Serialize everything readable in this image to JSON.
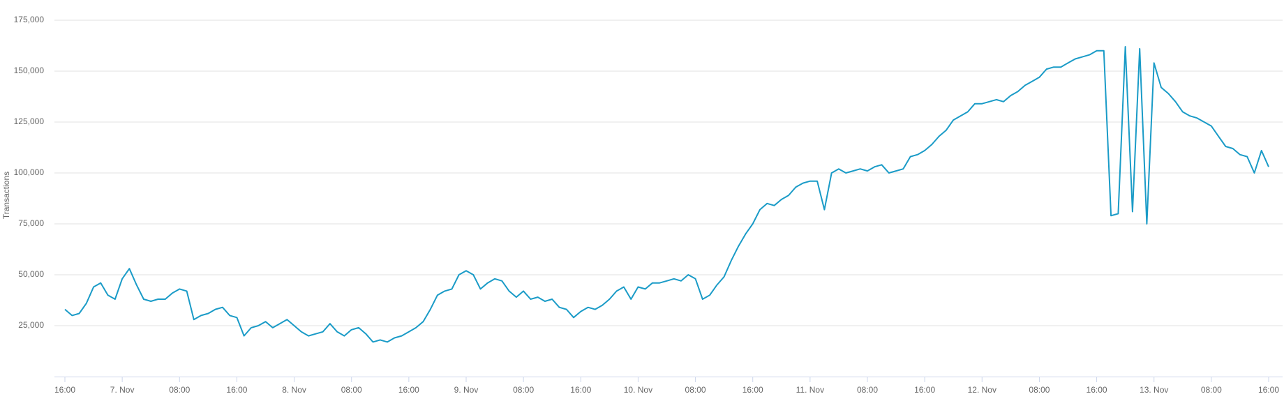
{
  "chart_data": {
    "type": "line",
    "y_label": "Transactions",
    "grid": true,
    "x": [
      "6. Nov 16:00",
      "6. Nov 17:00",
      "6. Nov 18:00",
      "6. Nov 19:00",
      "6. Nov 20:00",
      "6. Nov 21:00",
      "6. Nov 22:00",
      "6. Nov 23:00",
      "7. Nov 00:00",
      "7. Nov 01:00",
      "7. Nov 02:00",
      "7. Nov 03:00",
      "7. Nov 04:00",
      "7. Nov 05:00",
      "7. Nov 06:00",
      "7. Nov 07:00",
      "7. Nov 08:00",
      "7. Nov 09:00",
      "7. Nov 10:00",
      "7. Nov 11:00",
      "7. Nov 12:00",
      "7. Nov 13:00",
      "7. Nov 14:00",
      "7. Nov 15:00",
      "7. Nov 16:00",
      "7. Nov 17:00",
      "7. Nov 18:00",
      "7. Nov 19:00",
      "7. Nov 20:00",
      "7. Nov 21:00",
      "7. Nov 22:00",
      "7. Nov 23:00",
      "8. Nov 00:00",
      "8. Nov 01:00",
      "8. Nov 02:00",
      "8. Nov 03:00",
      "8. Nov 04:00",
      "8. Nov 05:00",
      "8. Nov 06:00",
      "8. Nov 07:00",
      "8. Nov 08:00",
      "8. Nov 09:00",
      "8. Nov 10:00",
      "8. Nov 11:00",
      "8. Nov 12:00",
      "8. Nov 13:00",
      "8. Nov 14:00",
      "8. Nov 15:00",
      "8. Nov 16:00",
      "8. Nov 17:00",
      "8. Nov 18:00",
      "8. Nov 19:00",
      "8. Nov 20:00",
      "8. Nov 21:00",
      "8. Nov 22:00",
      "8. Nov 23:00",
      "9. Nov 00:00",
      "9. Nov 01:00",
      "9. Nov 02:00",
      "9. Nov 03:00",
      "9. Nov 04:00",
      "9. Nov 05:00",
      "9. Nov 06:00",
      "9. Nov 07:00",
      "9. Nov 08:00",
      "9. Nov 09:00",
      "9. Nov 10:00",
      "9. Nov 11:00",
      "9. Nov 12:00",
      "9. Nov 13:00",
      "9. Nov 14:00",
      "9. Nov 15:00",
      "9. Nov 16:00",
      "9. Nov 17:00",
      "9. Nov 18:00",
      "9. Nov 19:00",
      "9. Nov 20:00",
      "9. Nov 21:00",
      "9. Nov 22:00",
      "9. Nov 23:00",
      "10. Nov 00:00",
      "10. Nov 01:00",
      "10. Nov 02:00",
      "10. Nov 03:00",
      "10. Nov 04:00",
      "10. Nov 05:00",
      "10. Nov 06:00",
      "10. Nov 07:00",
      "10. Nov 08:00",
      "10. Nov 09:00",
      "10. Nov 10:00",
      "10. Nov 11:00",
      "10. Nov 12:00",
      "10. Nov 13:00",
      "10. Nov 14:00",
      "10. Nov 15:00",
      "10. Nov 16:00",
      "10. Nov 17:00",
      "10. Nov 18:00",
      "10. Nov 19:00",
      "10. Nov 20:00",
      "10. Nov 21:00",
      "10. Nov 22:00",
      "10. Nov 23:00",
      "11. Nov 00:00",
      "11. Nov 01:00",
      "11. Nov 02:00",
      "11. Nov 03:00",
      "11. Nov 04:00",
      "11. Nov 05:00",
      "11. Nov 06:00",
      "11. Nov 07:00",
      "11. Nov 08:00",
      "11. Nov 09:00",
      "11. Nov 10:00",
      "11. Nov 11:00",
      "11. Nov 12:00",
      "11. Nov 13:00",
      "11. Nov 14:00",
      "11. Nov 15:00",
      "11. Nov 16:00",
      "11. Nov 17:00",
      "11. Nov 18:00",
      "11. Nov 19:00",
      "11. Nov 20:00",
      "11. Nov 21:00",
      "11. Nov 22:00",
      "11. Nov 23:00",
      "12. Nov 00:00",
      "12. Nov 01:00",
      "12. Nov 02:00",
      "12. Nov 03:00",
      "12. Nov 04:00",
      "12. Nov 05:00",
      "12. Nov 06:00",
      "12. Nov 07:00",
      "12. Nov 08:00",
      "12. Nov 09:00",
      "12. Nov 10:00",
      "12. Nov 11:00",
      "12. Nov 12:00",
      "12. Nov 13:00",
      "12. Nov 14:00",
      "12. Nov 15:00",
      "12. Nov 16:00",
      "12. Nov 17:00",
      "12. Nov 18:00",
      "12. Nov 19:00",
      "12. Nov 20:00",
      "12. Nov 21:00",
      "12. Nov 22:00",
      "12. Nov 23:00",
      "13. Nov 00:00",
      "13. Nov 01:00",
      "13. Nov 02:00",
      "13. Nov 03:00",
      "13. Nov 04:00",
      "13. Nov 05:00",
      "13. Nov 06:00",
      "13. Nov 07:00",
      "13. Nov 08:00",
      "13. Nov 09:00",
      "13. Nov 10:00",
      "13. Nov 11:00",
      "13. Nov 12:00",
      "13. Nov 13:00",
      "13. Nov 14:00",
      "13. Nov 15:00",
      "13. Nov 16:00"
    ],
    "series": [
      {
        "name": "Transactions",
        "color": "#1a9bc7",
        "values": [
          33000,
          30000,
          31000,
          36000,
          44000,
          46000,
          40000,
          38000,
          48000,
          53000,
          45000,
          38000,
          37000,
          38000,
          38000,
          41000,
          43000,
          42000,
          28000,
          30000,
          31000,
          33000,
          34000,
          30000,
          29000,
          20000,
          24000,
          25000,
          27000,
          24000,
          26000,
          28000,
          25000,
          22000,
          20000,
          21000,
          22000,
          26000,
          22000,
          20000,
          23000,
          24000,
          21000,
          17000,
          18000,
          17000,
          19000,
          20000,
          22000,
          24000,
          27000,
          33000,
          40000,
          42000,
          43000,
          50000,
          52000,
          50000,
          43000,
          46000,
          48000,
          47000,
          42000,
          39000,
          42000,
          38000,
          39000,
          37000,
          38000,
          34000,
          33000,
          29000,
          32000,
          34000,
          33000,
          35000,
          38000,
          42000,
          44000,
          38000,
          44000,
          43000,
          46000,
          46000,
          47000,
          48000,
          47000,
          50000,
          48000,
          38000,
          40000,
          45000,
          49000,
          57000,
          64000,
          70000,
          75000,
          82000,
          85000,
          84000,
          87000,
          89000,
          93000,
          95000,
          96000,
          96000,
          82000,
          100000,
          102000,
          100000,
          101000,
          102000,
          101000,
          103000,
          104000,
          100000,
          101000,
          102000,
          108000,
          109000,
          111000,
          114000,
          118000,
          121000,
          126000,
          128000,
          130000,
          134000,
          134000,
          135000,
          136000,
          135000,
          138000,
          140000,
          143000,
          145000,
          147000,
          151000,
          152000,
          152000,
          154000,
          156000,
          157000,
          158000,
          160000,
          160000,
          79000,
          80000,
          162000,
          81000,
          161000,
          75000,
          154000,
          142000,
          139000,
          135000,
          130000,
          128000,
          127000,
          125000,
          123000,
          118000,
          113000,
          112000,
          109000,
          108000,
          100000,
          111000,
          103000
        ]
      }
    ],
    "ylim": [
      0,
      175000
    ],
    "yticks": [
      {
        "value": 25000,
        "label": "25,000"
      },
      {
        "value": 50000,
        "label": "50,000"
      },
      {
        "value": 75000,
        "label": "75,000"
      },
      {
        "value": 100000,
        "label": "100,000"
      },
      {
        "value": 125000,
        "label": "125,000"
      },
      {
        "value": 150000,
        "label": "150,000"
      },
      {
        "value": 175000,
        "label": "175,000"
      }
    ],
    "xticks": [
      {
        "value": "6. Nov 16:00",
        "label": "16:00"
      },
      {
        "value": "7. Nov 00:00",
        "label": "7. Nov"
      },
      {
        "value": "7. Nov 08:00",
        "label": "08:00"
      },
      {
        "value": "7. Nov 16:00",
        "label": "16:00"
      },
      {
        "value": "8. Nov 00:00",
        "label": "8. Nov"
      },
      {
        "value": "8. Nov 08:00",
        "label": "08:00"
      },
      {
        "value": "8. Nov 16:00",
        "label": "16:00"
      },
      {
        "value": "9. Nov 00:00",
        "label": "9. Nov"
      },
      {
        "value": "9. Nov 08:00",
        "label": "08:00"
      },
      {
        "value": "9. Nov 16:00",
        "label": "16:00"
      },
      {
        "value": "10. Nov 00:00",
        "label": "10. Nov"
      },
      {
        "value": "10. Nov 08:00",
        "label": "08:00"
      },
      {
        "value": "10. Nov 16:00",
        "label": "16:00"
      },
      {
        "value": "11. Nov 00:00",
        "label": "11. Nov"
      },
      {
        "value": "11. Nov 08:00",
        "label": "08:00"
      },
      {
        "value": "11. Nov 16:00",
        "label": "16:00"
      },
      {
        "value": "12. Nov 00:00",
        "label": "12. Nov"
      },
      {
        "value": "12. Nov 08:00",
        "label": "08:00"
      },
      {
        "value": "12. Nov 16:00",
        "label": "16:00"
      },
      {
        "value": "13. Nov 00:00",
        "label": "13. Nov"
      },
      {
        "value": "13. Nov 08:00",
        "label": "08:00"
      },
      {
        "value": "13. Nov 16:00",
        "label": "16:00"
      }
    ]
  }
}
